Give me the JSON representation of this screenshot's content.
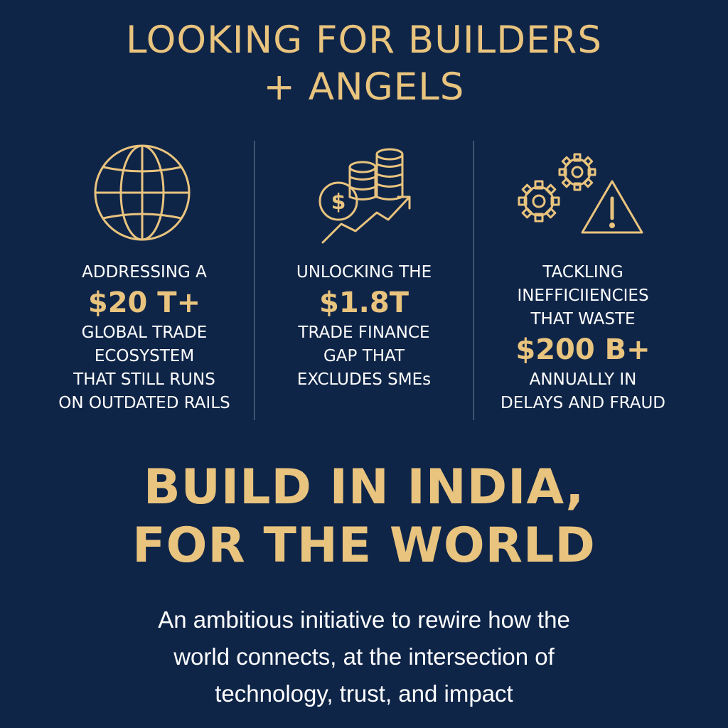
{
  "headline": {
    "line1": "LOOKING FOR BUILDERS",
    "line2": "+ ANGELS"
  },
  "columns": [
    {
      "icon": "globe-icon",
      "intro": "ADDRESSING A",
      "figure": "$20 T+",
      "lines": [
        "GLOBAL TRADE",
        "ECOSYSTEM",
        "THAT STILL RUNS",
        "ON OUTDATED RAILS"
      ]
    },
    {
      "icon": "coins-growth-icon",
      "intro": "UNLOCKING THE",
      "figure": "$1.8T",
      "lines": [
        "TRADE FINANCE",
        "GAP THAT",
        "EXCLUDES SMEs"
      ]
    },
    {
      "icon": "gears-warning-icon",
      "intro": "TACKLING",
      "intro2": "INEFFICIIENCIES",
      "intro3": "THAT WASTE",
      "figure": "$200 B+",
      "lines": [
        "ANNUALLY IN",
        "DELAYS AND FRAUD"
      ]
    }
  ],
  "cta": {
    "line1": "BUILD IN INDIA,",
    "line2": "FOR THE WORLD"
  },
  "description": {
    "line1": "An ambitious initiative to rewire how the",
    "line2": "world connects, at the intersection of",
    "line3": "technology, trust, and impact"
  },
  "colors": {
    "background": "#0f2548",
    "gold": "#e9c47e",
    "text": "#ffffff"
  }
}
